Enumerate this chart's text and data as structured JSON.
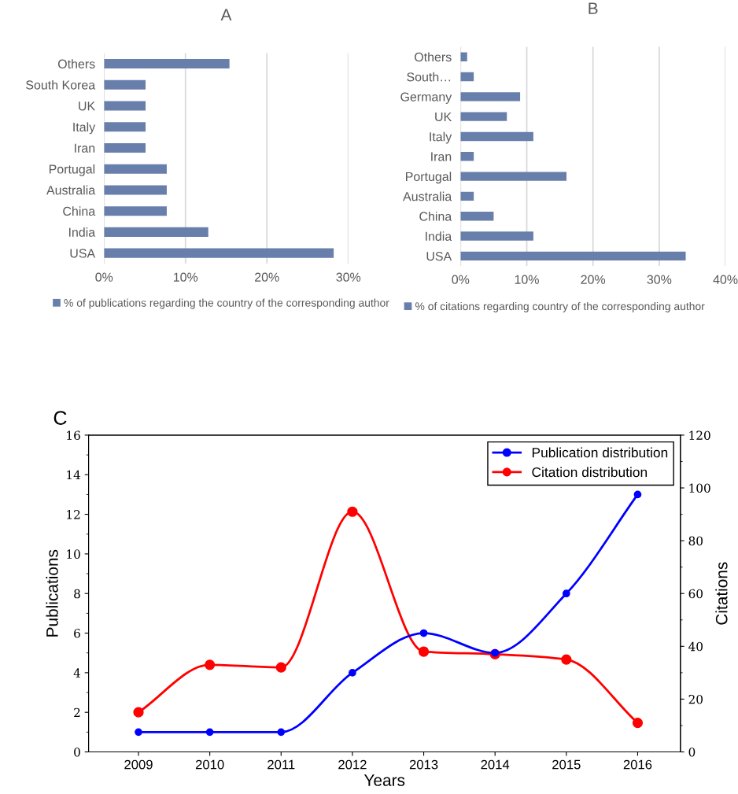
{
  "chart_data": [
    {
      "type": "bar",
      "title": "A",
      "orientation": "horizontal",
      "categories": [
        "Others",
        "South Korea",
        "UK",
        "Italy",
        "Iran",
        "Portugal",
        "Australia",
        "China",
        "India",
        "USA"
      ],
      "series": [
        {
          "name": "% of publications regarding the country of the corresponding author",
          "color": "#687fab",
          "values": [
            15.4,
            5.1,
            5.1,
            5.1,
            5.1,
            7.7,
            7.7,
            7.7,
            12.8,
            28.2
          ]
        }
      ],
      "xlim": [
        0,
        30
      ],
      "xticks": [
        {
          "value": 0,
          "label": "0%"
        },
        {
          "value": 10,
          "label": "10%"
        },
        {
          "value": 20,
          "label": "20%"
        },
        {
          "value": 30,
          "label": "30%"
        }
      ],
      "grid": "x",
      "legend": "bottom"
    },
    {
      "type": "bar",
      "title": "B",
      "orientation": "horizontal",
      "categories": [
        "Others",
        "South…",
        "Germany",
        "UK",
        "Italy",
        "Iran",
        "Portugal",
        "Australia",
        "China",
        "India",
        "USA"
      ],
      "series": [
        {
          "name": "% of citations regarding country of the corresponding author",
          "color": "#687fab",
          "values": [
            1,
            2,
            9,
            7,
            11,
            2,
            16,
            2,
            5,
            11,
            34
          ]
        }
      ],
      "xlim": [
        0,
        40
      ],
      "xticks": [
        {
          "value": 0,
          "label": "0%"
        },
        {
          "value": 10,
          "label": "10%"
        },
        {
          "value": 20,
          "label": "20%"
        },
        {
          "value": 30,
          "label": "30%"
        },
        {
          "value": 40,
          "label": "40%"
        }
      ],
      "grid": "x",
      "legend": "bottom"
    },
    {
      "type": "line",
      "title": "C",
      "xlabel": "Years",
      "ylabel": "Publications",
      "y2label": "Citations",
      "x": [
        2009,
        2010,
        2011,
        2012,
        2013,
        2014,
        2015,
        2016
      ],
      "series": [
        {
          "name": "Publication distribution",
          "color": "#0000ff",
          "values": [
            1,
            1,
            1,
            4,
            6,
            5,
            8,
            13
          ]
        },
        {
          "name": "Citation distribution",
          "color": "#ff0000",
          "axis": "y2",
          "values": [
            15,
            33,
            32,
            91,
            38,
            37,
            35,
            11
          ]
        }
      ],
      "xlim": [
        2008.3,
        2016.6
      ],
      "xticks": [
        2009,
        2010,
        2011,
        2012,
        2013,
        2014,
        2015,
        2016
      ],
      "ylim": [
        0,
        16
      ],
      "yticks": [
        0,
        2,
        4,
        6,
        8,
        10,
        12,
        14,
        16
      ],
      "y2lim": [
        0,
        120
      ],
      "y2ticks": [
        0,
        20,
        40,
        60,
        80,
        100,
        120
      ],
      "marker": "circle",
      "grid": false,
      "legend": "top right"
    }
  ]
}
